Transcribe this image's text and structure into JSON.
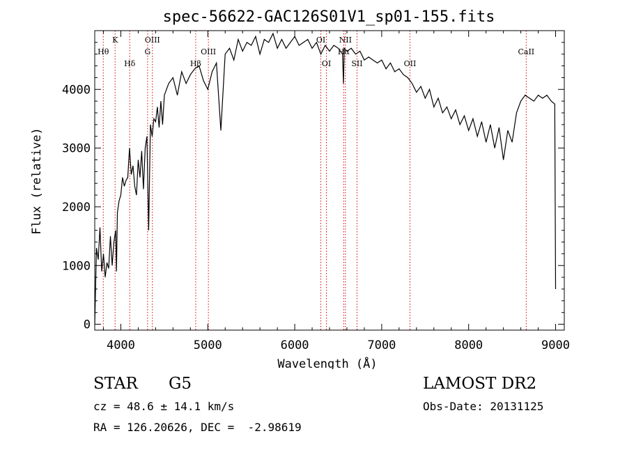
{
  "chart_data": {
    "type": "line",
    "title": "spec-56622-GAC126S01V1_sp01-155.fits",
    "xlabel": "Wavelength (Å)",
    "ylabel": "Flux (relative)",
    "xlim": [
      3700,
      9100
    ],
    "ylim": [
      -100,
      5000
    ],
    "xticks": [
      "4000",
      "5000",
      "6000",
      "7000",
      "8000",
      "9000"
    ],
    "yticks": [
      "0",
      "1000",
      "2000",
      "3000",
      "4000"
    ],
    "xtick_values": [
      4000,
      5000,
      6000,
      7000,
      8000,
      9000
    ],
    "ytick_values": [
      0,
      1000,
      2000,
      3000,
      4000
    ],
    "grid": false,
    "line_color": "#000000",
    "marker_color": "#cc0000",
    "series": [
      {
        "x": [
          3700,
          3720,
          3740,
          3760,
          3780,
          3800,
          3820,
          3840,
          3860,
          3880,
          3900,
          3920,
          3940,
          3950,
          3960,
          3980,
          4000,
          4020,
          4040,
          4060,
          4080,
          4100,
          4120,
          4140,
          4160,
          4180,
          4200,
          4220,
          4240,
          4260,
          4280,
          4300,
          4320,
          4340,
          4360,
          4380,
          4400,
          4420,
          4440,
          4460,
          4480,
          4500,
          4550,
          4600,
          4650,
          4700,
          4750,
          4800,
          4850,
          4900,
          4950,
          5000,
          5050,
          5100,
          5150,
          5200,
          5250,
          5300,
          5350,
          5400,
          5450,
          5500,
          5550,
          5600,
          5650,
          5700,
          5750,
          5800,
          5850,
          5900,
          5950,
          6000,
          6050,
          6100,
          6150,
          6200,
          6250,
          6300,
          6350,
          6400,
          6450,
          6500,
          6550,
          6560,
          6570,
          6600,
          6650,
          6700,
          6750,
          6800,
          6850,
          6900,
          6950,
          7000,
          7050,
          7100,
          7150,
          7200,
          7250,
          7300,
          7350,
          7400,
          7450,
          7500,
          7550,
          7600,
          7650,
          7700,
          7750,
          7800,
          7850,
          7900,
          7950,
          8000,
          8050,
          8100,
          8150,
          8200,
          8250,
          8300,
          8350,
          8400,
          8450,
          8500,
          8550,
          8600,
          8650,
          8700,
          8750,
          8800,
          8850,
          8900,
          8950,
          8990,
          9000
        ],
        "y": [
          0,
          1300,
          1100,
          1650,
          900,
          1200,
          800,
          1050,
          950,
          1500,
          1000,
          1400,
          1600,
          900,
          1900,
          2100,
          2200,
          2500,
          2350,
          2450,
          2500,
          3000,
          2550,
          2700,
          2350,
          2200,
          2800,
          2500,
          2950,
          2300,
          3000,
          3200,
          1600,
          3400,
          3200,
          3500,
          3450,
          3700,
          3350,
          3800,
          3400,
          3900,
          4100,
          4200,
          3900,
          4300,
          4100,
          4250,
          4350,
          4400,
          4150,
          4000,
          4300,
          4450,
          3300,
          4600,
          4700,
          4500,
          4850,
          4650,
          4800,
          4750,
          4900,
          4600,
          4850,
          4800,
          4950,
          4700,
          4850,
          4700,
          4800,
          4900,
          4750,
          4800,
          4850,
          4700,
          4800,
          4600,
          4750,
          4650,
          4750,
          4700,
          4600,
          4100,
          4700,
          4650,
          4700,
          4600,
          4650,
          4500,
          4550,
          4500,
          4450,
          4500,
          4350,
          4450,
          4300,
          4350,
          4250,
          4200,
          4100,
          3950,
          4050,
          3850,
          4000,
          3700,
          3850,
          3600,
          3700,
          3500,
          3650,
          3400,
          3550,
          3300,
          3500,
          3200,
          3450,
          3100,
          3400,
          3000,
          3350,
          2800,
          3300,
          3100,
          3600,
          3800,
          3900,
          3850,
          3800,
          3900,
          3850,
          3900,
          3800,
          3750,
          600
        ]
      }
    ],
    "lines": [
      {
        "label": "K",
        "x": 3934,
        "pos": "top"
      },
      {
        "label": "Hθ",
        "x": 3798,
        "pos": "upper"
      },
      {
        "label": "Hδ",
        "x": 4102,
        "pos": "lower"
      },
      {
        "label": "OIII",
        "x": 4363,
        "pos": "top"
      },
      {
        "label": "G",
        "x": 4308,
        "pos": "upper"
      },
      {
        "label": "OIII",
        "x": 5007,
        "pos": "upper"
      },
      {
        "label": "Hβ",
        "x": 4861,
        "pos": "lower"
      },
      {
        "label": "OI",
        "x": 6300,
        "pos": "top"
      },
      {
        "label": "OI",
        "x": 6364,
        "pos": "lower"
      },
      {
        "label": "NII",
        "x": 6583,
        "pos": "top"
      },
      {
        "label": "Hα",
        "x": 6563,
        "pos": "upper"
      },
      {
        "label": "SII",
        "x": 6716,
        "pos": "lower"
      },
      {
        "label": "OII",
        "x": 7325,
        "pos": "lower"
      },
      {
        "label": "CaII",
        "x": 8662,
        "pos": "upper"
      }
    ]
  },
  "info": {
    "object_type": "STAR",
    "subclass": "G5",
    "survey": "LAMOST DR2",
    "redshift": "cz = 48.6 ± 14.1 km/s",
    "obs_date": "Obs-Date: 20131125",
    "coords": "RA = 126.20626, DEC =  -2.98619"
  }
}
